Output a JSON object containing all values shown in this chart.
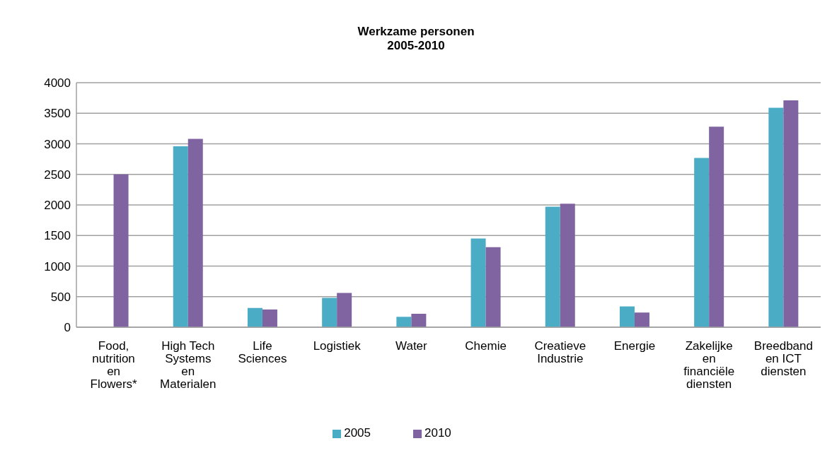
{
  "chart_data": {
    "type": "bar",
    "title": "Werkzame personen\n2005-2010",
    "categories": [
      "Food, nutrition en Flowers*",
      "High Tech Systems en Materialen",
      "Life Sciences",
      "Logistiek",
      "Water",
      "Chemie",
      "Creatieve Industrie",
      "Energie",
      "Zakelijke en financiële diensten",
      "Breedband en ICT diensten"
    ],
    "series": [
      {
        "name": "2005",
        "color": "#4bacc6",
        "values": [
          null,
          2960,
          315,
          480,
          170,
          1450,
          1970,
          340,
          2770,
          3590
        ]
      },
      {
        "name": "2010",
        "color": "#8064a2",
        "values": [
          2500,
          3080,
          290,
          560,
          220,
          1310,
          2020,
          240,
          3280,
          3710
        ]
      }
    ],
    "ylim": [
      0,
      4000
    ],
    "yticks": [
      0,
      500,
      1000,
      1500,
      2000,
      2500,
      3000,
      3500,
      4000
    ],
    "grid": "y",
    "legend": "bottom"
  }
}
